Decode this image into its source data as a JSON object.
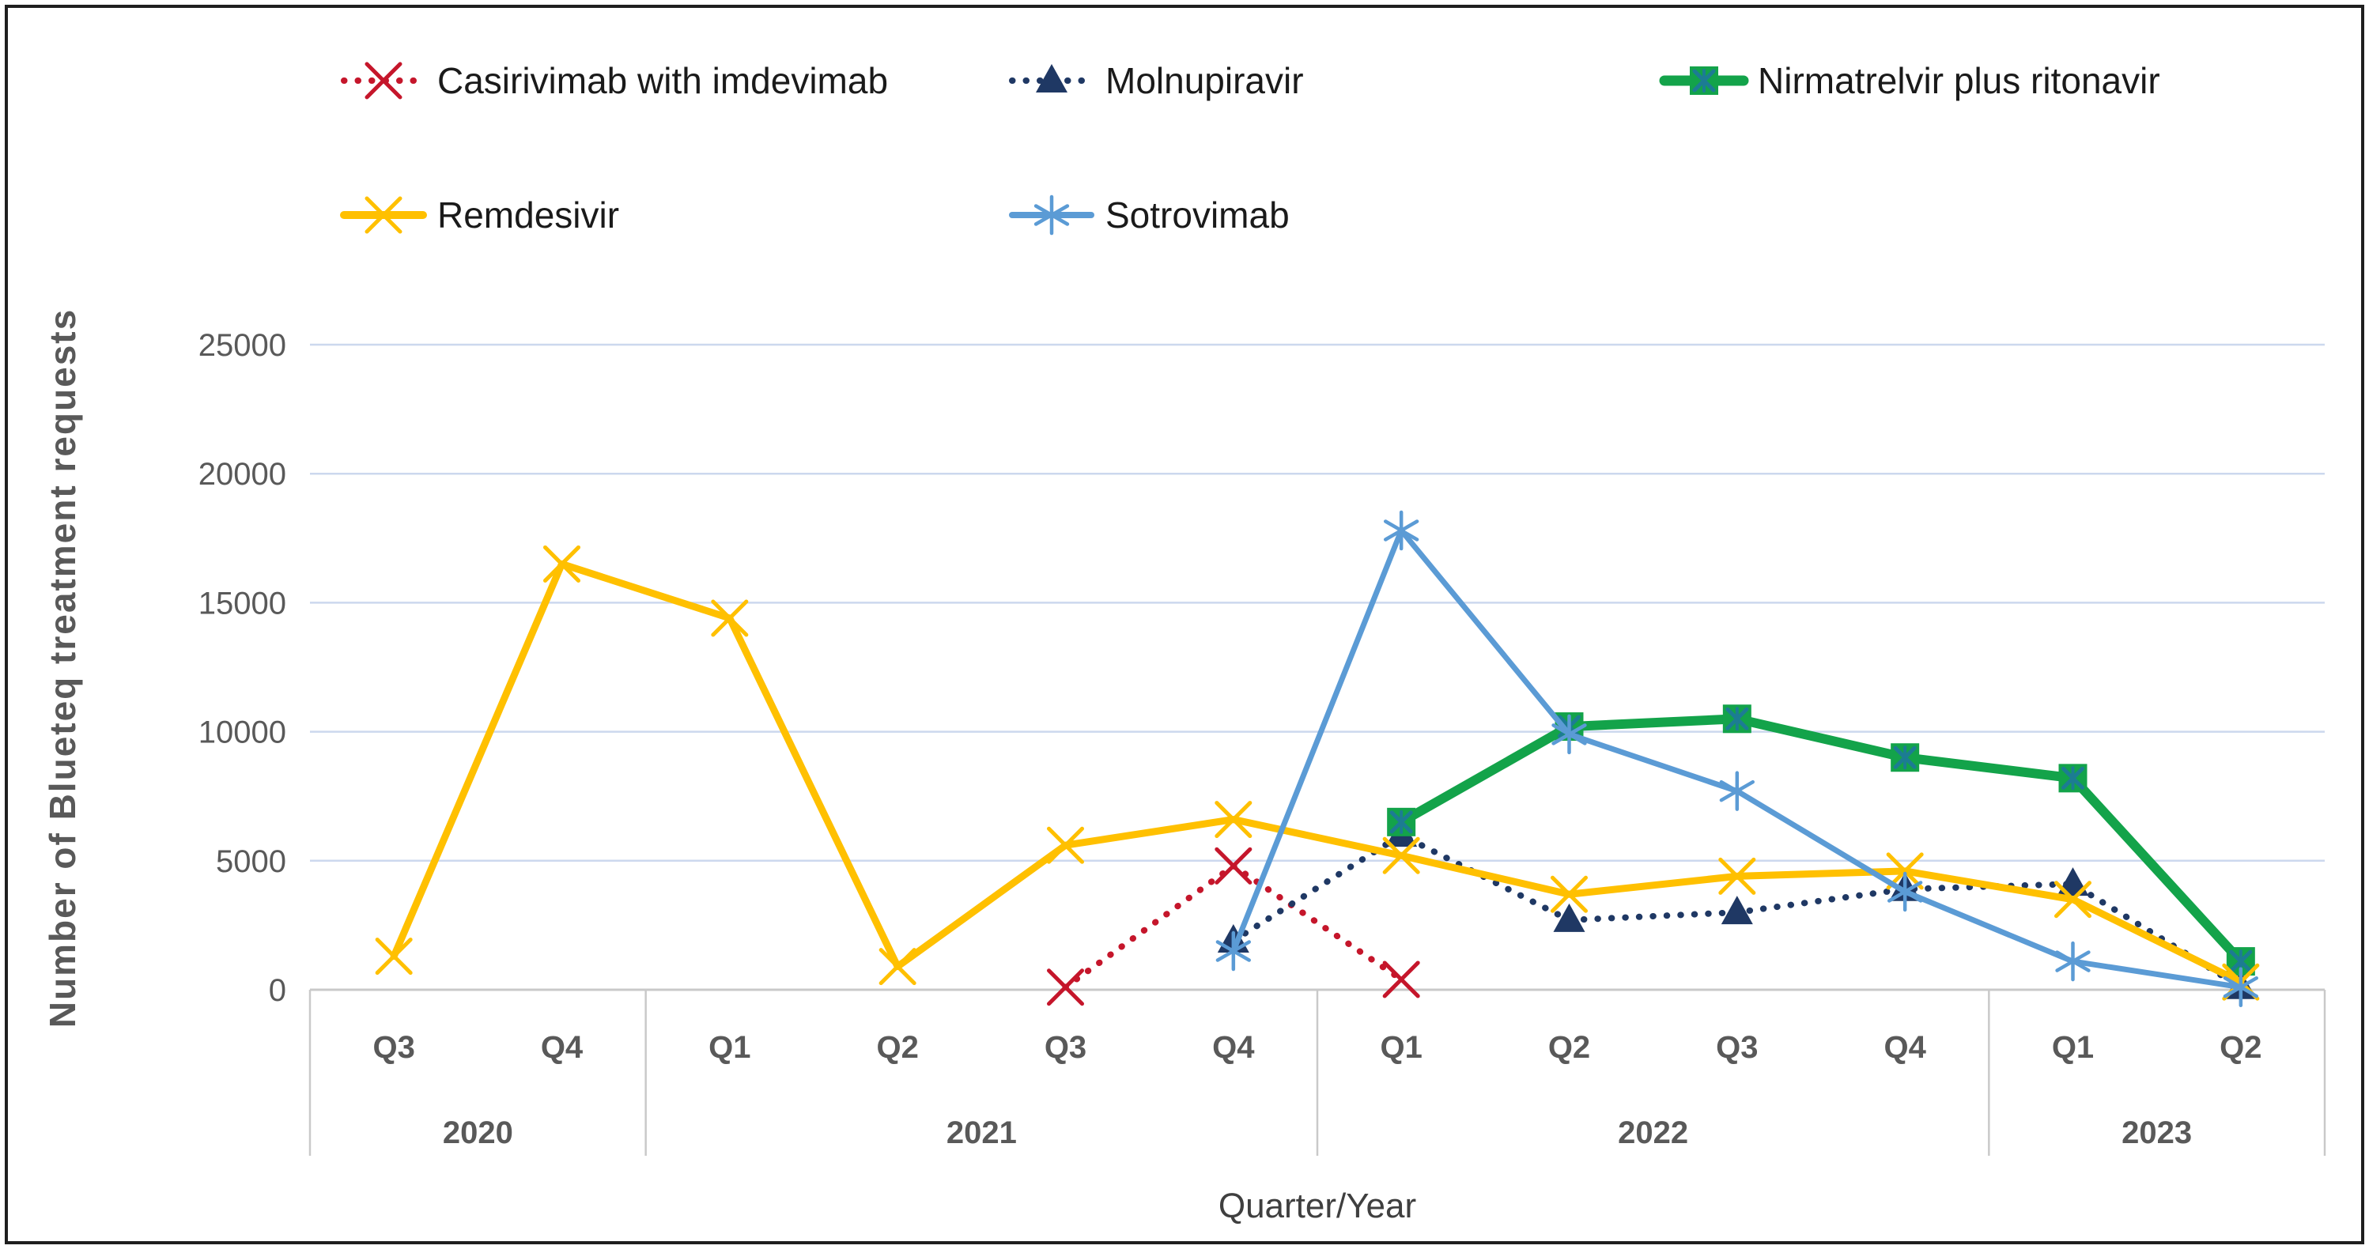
{
  "legend": {
    "rows": [
      [
        "Casirivimab with imdevimab",
        "Molnupiravir",
        "Nirmatrelvir plus ritonavir"
      ],
      [
        "Remdesivir",
        "Sotrovimab"
      ]
    ]
  },
  "chart_data": {
    "type": "line",
    "title": "",
    "xlabel": "Quarter/Year",
    "ylabel": "Number of Blueteq treatment requests",
    "ylim": [
      0,
      25000
    ],
    "yticks": [
      0,
      5000,
      10000,
      15000,
      20000,
      25000
    ],
    "grid": "horizontal",
    "legend_position": "top",
    "categories": [
      "Q3",
      "Q4",
      "Q1",
      "Q2",
      "Q3",
      "Q4",
      "Q1",
      "Q2",
      "Q3",
      "Q4",
      "Q1",
      "Q2"
    ],
    "year_groups": [
      {
        "label": "2020",
        "span": 2
      },
      {
        "label": "2021",
        "span": 4
      },
      {
        "label": "2022",
        "span": 4
      },
      {
        "label": "2023",
        "span": 2
      }
    ],
    "series": [
      {
        "name": "Casirivimab with imdevimab",
        "color": "#C5162B",
        "line": "dotted",
        "marker": "x",
        "values": [
          null,
          null,
          null,
          null,
          100,
          4800,
          400,
          null,
          null,
          null,
          null,
          null
        ]
      },
      {
        "name": "Molnupiravir",
        "color": "#1F3864",
        "line": "dotted",
        "marker": "triangle",
        "values": [
          null,
          null,
          null,
          null,
          null,
          1900,
          6000,
          2700,
          3000,
          3900,
          4100,
          100
        ]
      },
      {
        "name": "Nirmatrelvir plus ritonavir",
        "color": "#13A34A",
        "line": "solid",
        "marker": "square",
        "values": [
          null,
          null,
          null,
          null,
          null,
          null,
          6500,
          10200,
          10500,
          9000,
          8200,
          1100
        ]
      },
      {
        "name": "Remdesivir",
        "color": "#FFC000",
        "line": "solid",
        "marker": "x",
        "values": [
          1300,
          16500,
          14400,
          900,
          5600,
          6600,
          5200,
          3700,
          4400,
          4600,
          3500,
          300
        ]
      },
      {
        "name": "Sotrovimab",
        "color": "#5B9BD5",
        "line": "solid",
        "marker": "asterisk",
        "values": [
          null,
          null,
          null,
          null,
          null,
          1500,
          17800,
          9900,
          7700,
          3800,
          1100,
          100
        ]
      }
    ],
    "colors": {
      "gridline": "#CCD8EE",
      "axis_line": "#C9C9C9",
      "tick_text": "#595959",
      "category_text": "#595959",
      "axis_title_text": "#3F3F3F",
      "legend_text": "#1A1A1A",
      "square_inner_x": "#1C7C93"
    }
  }
}
